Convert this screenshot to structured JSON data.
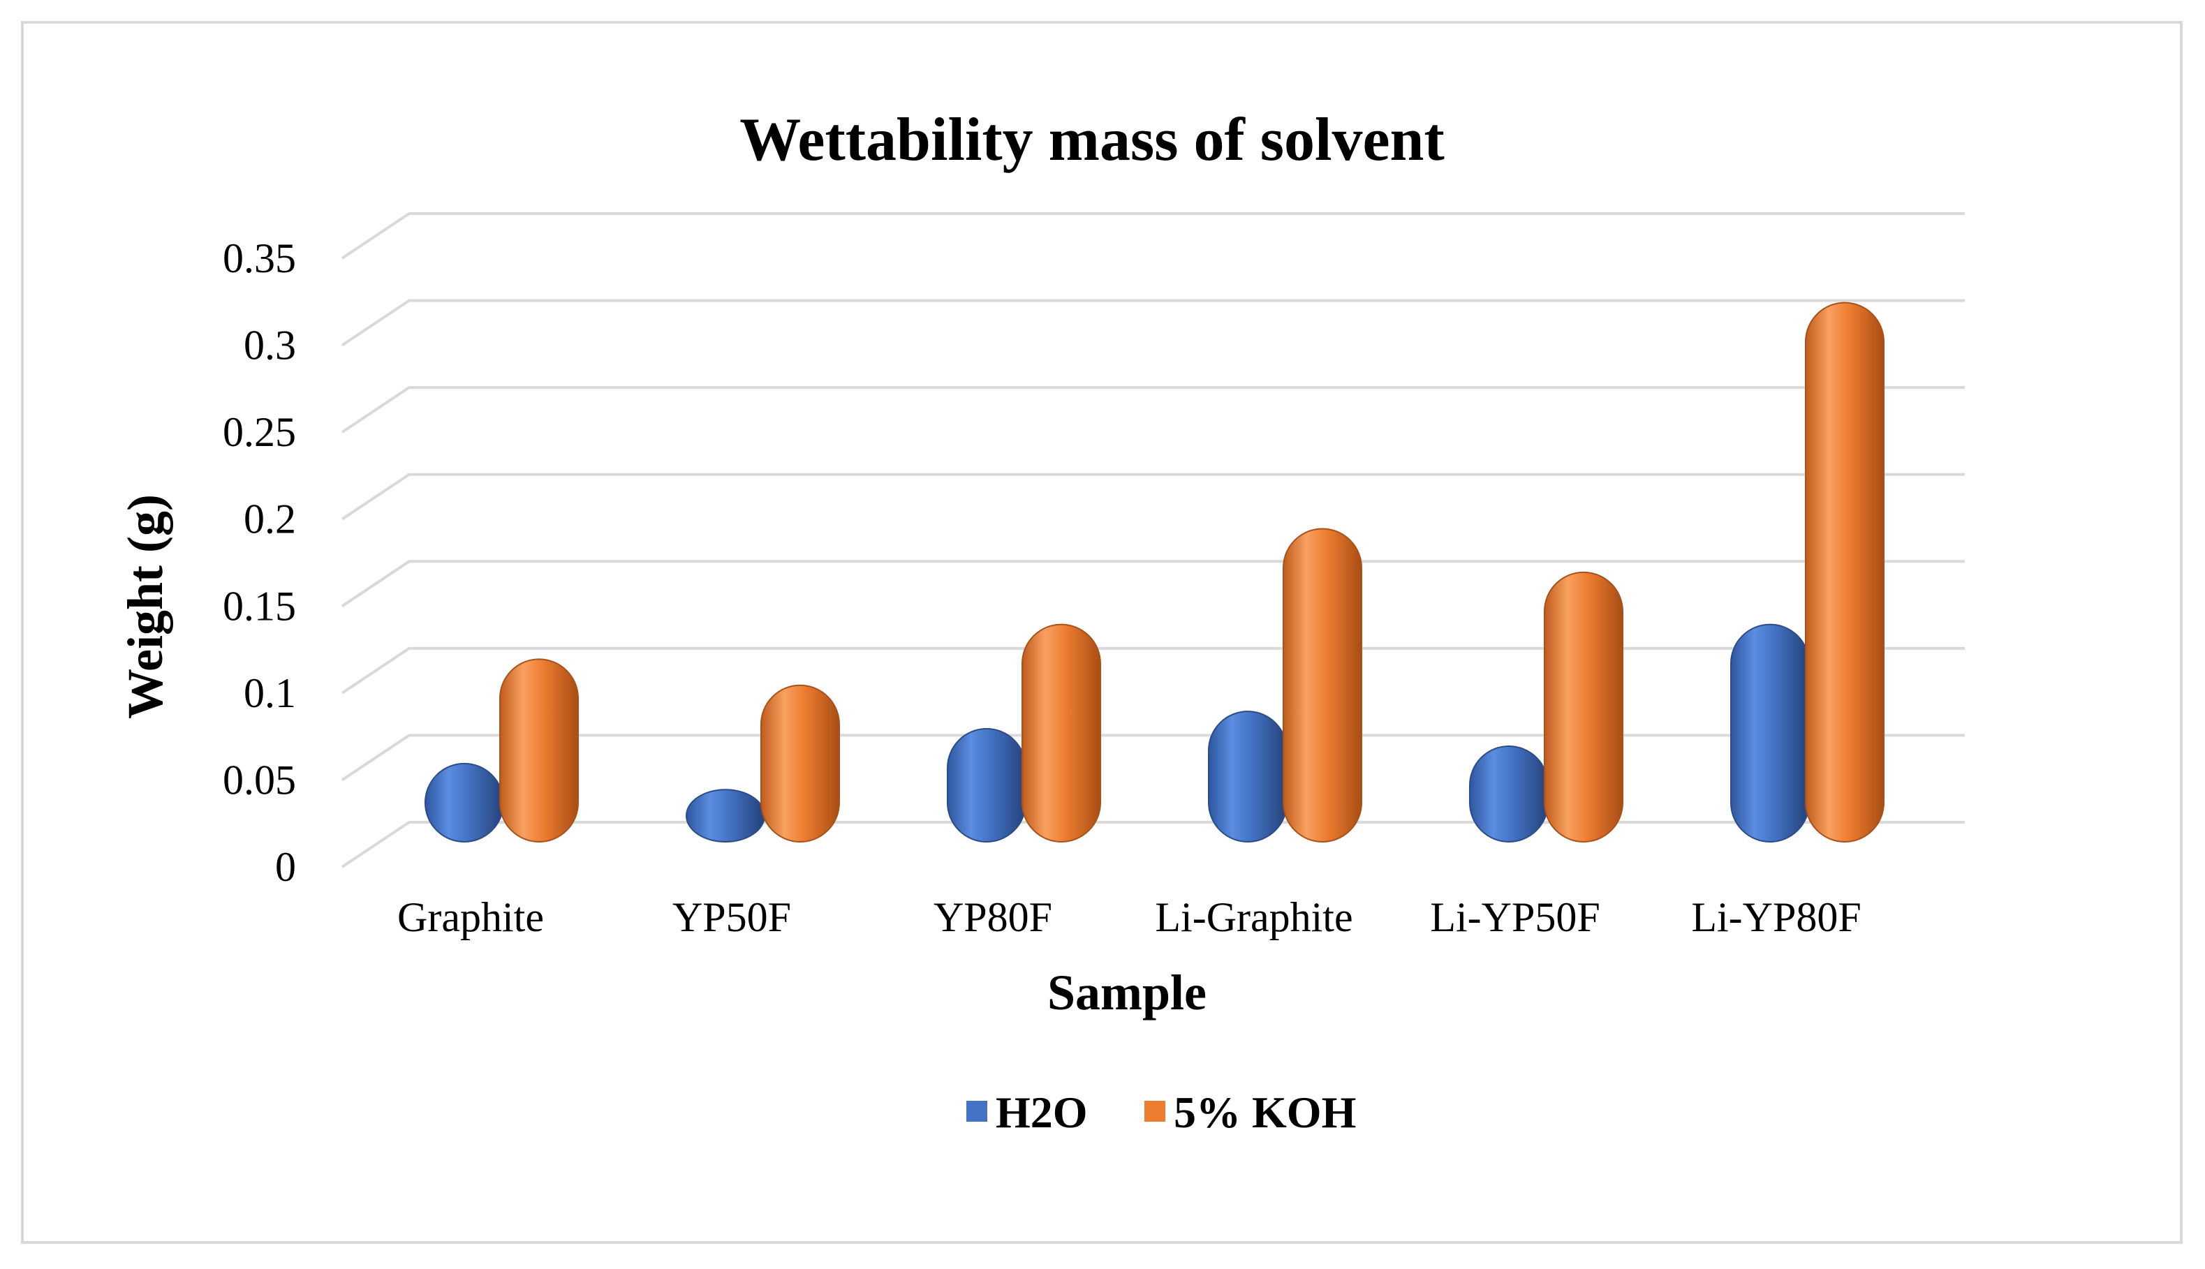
{
  "chart_data": {
    "type": "bar",
    "title": "Wettability mass of solvent",
    "xlabel": "Sample",
    "ylabel": "Weight (g)",
    "ylim": [
      0,
      0.35
    ],
    "yticks": [
      0,
      0.05,
      0.1,
      0.15,
      0.2,
      0.25,
      0.3,
      0.35
    ],
    "ytick_labels": [
      "0",
      "0.05",
      "0.1",
      "0.15",
      "0.2",
      "0.25",
      "0.3",
      "0.35"
    ],
    "grid": true,
    "legend_position": "bottom",
    "categories": [
      "Graphite",
      "YP50F",
      "YP80F",
      "Li-Graphite",
      "Li-YP50F",
      "Li-YP80F"
    ],
    "series": [
      {
        "name": "H2O",
        "color": "#4472c4",
        "values": [
          0.045,
          0.03,
          0.065,
          0.075,
          0.055,
          0.125
        ]
      },
      {
        "name": "5% KOH",
        "color": "#ed7d31",
        "values": [
          0.105,
          0.09,
          0.125,
          0.18,
          0.155,
          0.31
        ]
      }
    ]
  }
}
